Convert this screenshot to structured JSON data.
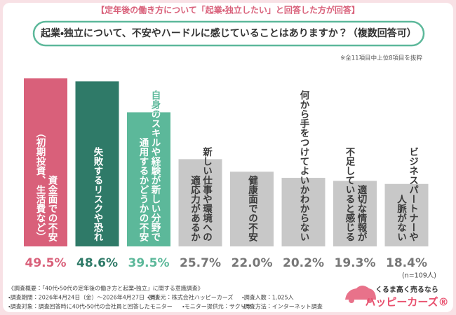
{
  "chart_data": {
    "type": "bar",
    "header": "【定年後の働き方について「起業・独立したい」と回答した方が回答】",
    "title": "起業・独立について、不安やハードルに感じていることはありますか？（複数回答可）",
    "note": "※全11項目中上位8項目を抜粋",
    "categories": [
      [
        "資金面での不安",
        "（初期投資、生活費など）"
      ],
      [
        "失敗するリスクや恐れ"
      ],
      [
        "自身のスキルや経験が新しい分野で",
        "通用するかどうかの不安"
      ],
      [
        "新しい仕事や環境への",
        "適応力があるか"
      ],
      [
        "健康面での不安"
      ],
      [
        "何から手をつけてよいかわからない"
      ],
      [
        "適切な情報が",
        "不足していると感じる"
      ],
      [
        "ビジネスパートナーや",
        "人脈がない"
      ]
    ],
    "values": [
      49.5,
      48.6,
      39.5,
      25.7,
      22.0,
      20.2,
      19.3,
      18.4
    ],
    "value_labels": [
      "49.5%",
      "48.6%",
      "39.5%",
      "25.7%",
      "22.0%",
      "20.2%",
      "19.3%",
      "18.4%"
    ],
    "colors": [
      "#d9607a",
      "#2f7a68",
      "#5cb89a",
      "#c8c8c8",
      "#c8c8c8",
      "#c8c8c8",
      "#c8c8c8",
      "#c8c8c8"
    ],
    "value_label_colors": [
      "#d9607a",
      "#2f7a68",
      "#5cb89a",
      "#777777",
      "#777777",
      "#777777",
      "#777777",
      "#777777"
    ],
    "sample_size": "(n=109人)",
    "footnotes": [
      [
        "《調査概要：「40代・50代の定年後の働き方と起業・独立」に関する意識調査》"
      ],
      [
        "・調査期間：2026年4月24日（金）〜2026年4月27日（月）",
        "・調査元：株式会社ハッピーカーズ",
        "・調査人数：1,025人"
      ],
      [
        "・調査対象：調査回答時に40代・50代の会社員と回答したモニター",
        "・モニター提供元：サクリサ",
        "・調査方法：インターネット調査"
      ]
    ],
    "logo": {
      "tagline": "くるま高く売るなら",
      "name": "ハッピーカーズ®"
    }
  }
}
